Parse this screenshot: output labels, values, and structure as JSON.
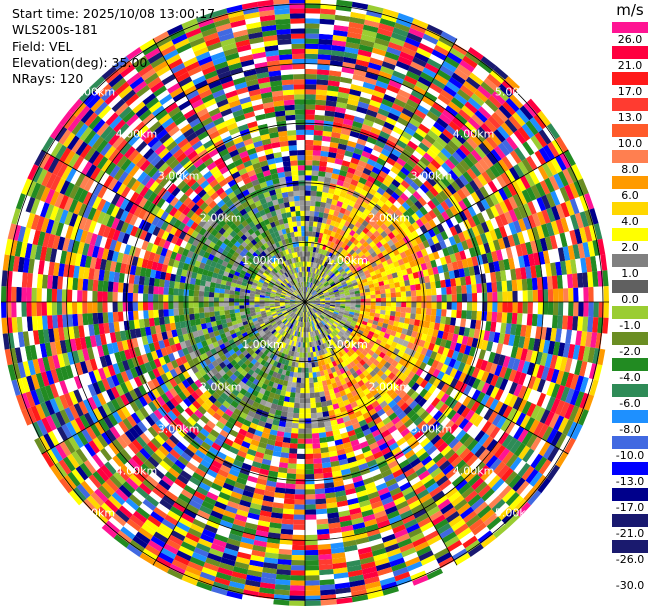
{
  "header": {
    "start_time": "Start time: 2025/10/08 13:00:17",
    "instrument": "WLS200s-181",
    "field": "Field: VEL",
    "elevation": "Elevation(deg): 35.00",
    "nrays": "NRays: 120"
  },
  "colorbar": {
    "unit": "m/s",
    "ticks": [
      "26.0",
      "21.0",
      "17.0",
      "13.0",
      "10.0",
      "8.0",
      "6.0",
      "4.0",
      "2.0",
      "1.0",
      "0.0",
      "-1.0",
      "-2.0",
      "-4.0",
      "-6.0",
      "-8.0",
      "-10.0",
      "-13.0",
      "-17.0",
      "-21.0",
      "-26.0",
      "-30.0"
    ],
    "colors": [
      "#ff1493",
      "#ff0040",
      "#ff1a1a",
      "#ff3b30",
      "#ff5a2a",
      "#ff7f50",
      "#ff9a00",
      "#ffd700",
      "#ffff00",
      "#808080",
      "#606060",
      "#9acd32",
      "#6b8e23",
      "#228b22",
      "#2e8b57",
      "#1e90ff",
      "#4169e1",
      "#0000ff",
      "#00008b",
      "#191970",
      "#1a1a6e"
    ]
  },
  "chart_data": {
    "type": "ppi",
    "field": "VEL",
    "units": "m/s",
    "elevation_deg": 35.0,
    "nrays": 120,
    "range_rings_km": [
      1.0,
      2.0,
      3.0,
      4.0,
      5.0
    ],
    "range_labels": [
      "1.00km",
      "2.00km",
      "3.00km",
      "4.00km",
      "5.00km"
    ],
    "spoke_azimuths_deg": [
      0,
      30,
      60,
      90,
      120,
      150,
      180,
      210,
      240,
      270,
      300,
      330
    ],
    "vmin": -30.0,
    "vmax": 26.0,
    "max_range_km": 5.1
  }
}
